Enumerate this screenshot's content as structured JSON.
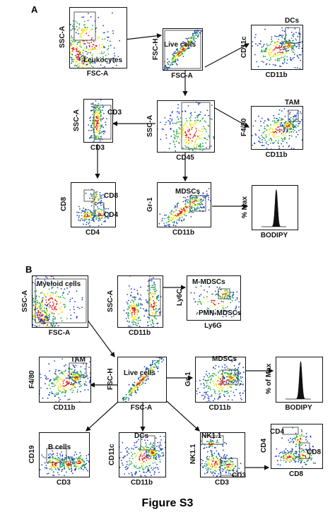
{
  "figure_title": "Figure S3",
  "panels": {
    "A": {
      "letter": "A",
      "plots": [
        {
          "id": "a1",
          "x": "FSC-A",
          "y": "SSC-A",
          "gates": [
            "Leukocytes"
          ],
          "kind": "scatter-big"
        },
        {
          "id": "a2",
          "x": "FSC-A",
          "y": "FSC-H",
          "gates": [
            "Live cells"
          ],
          "kind": "diag"
        },
        {
          "id": "a3",
          "x": "CD11b",
          "y": "CD11c",
          "gates": [
            "DCs"
          ],
          "kind": "cluster"
        },
        {
          "id": "a4",
          "x": "CD3",
          "y": "SSC-A",
          "gates": [
            "CD3"
          ],
          "kind": "vertical"
        },
        {
          "id": "a5",
          "x": "CD45",
          "y": "SSC-A",
          "gates": [],
          "kind": "blob"
        },
        {
          "id": "a6",
          "x": "CD11b",
          "y": "F4/80",
          "gates": [
            "TAM"
          ],
          "kind": "cluster"
        },
        {
          "id": "a7",
          "x": "CD4",
          "y": "CD8",
          "gates": [
            "CD8",
            "CD4"
          ],
          "kind": "quad"
        },
        {
          "id": "a8",
          "x": "CD11b",
          "y": "Gr-1",
          "gates": [
            "MDSCs"
          ],
          "kind": "diagcluster"
        },
        {
          "id": "a9",
          "x": "BODIPY",
          "y": "% Max",
          "gates": [],
          "kind": "hist"
        }
      ]
    },
    "B": {
      "letter": "B",
      "plots": [
        {
          "id": "b1",
          "x": "FSC-A",
          "y": "SSC-A",
          "gates": [
            "Myeloid cells"
          ],
          "kind": "scatter-big"
        },
        {
          "id": "b2",
          "x": "CD11b",
          "y": "SSC-A",
          "gates": [],
          "kind": "twocol"
        },
        {
          "id": "b3",
          "x": "Ly6G",
          "y": "Ly6C",
          "gates": [
            "M-MDSCs",
            "PMN-MDSCs"
          ],
          "kind": "sparse"
        },
        {
          "id": "b4",
          "x": "CD11b",
          "y": "F4/80",
          "gates": [
            "TAM"
          ],
          "kind": "cluster"
        },
        {
          "id": "b5",
          "x": "FSC-A",
          "y": "FSC-H",
          "gates": [
            "Live cells"
          ],
          "kind": "diag"
        },
        {
          "id": "b6",
          "x": "CD11b",
          "y": "Gr-1",
          "gates": [
            "MDSCs"
          ],
          "kind": "cluster"
        },
        {
          "id": "b7",
          "x": "BODIPY",
          "y": "% of Max",
          "gates": [],
          "kind": "hist"
        },
        {
          "id": "b8",
          "x": "CD3",
          "y": "CD19",
          "gates": [
            "B cells"
          ],
          "kind": "threeblob"
        },
        {
          "id": "b9",
          "x": "CD11b",
          "y": "CD11c",
          "gates": [
            "DCs"
          ],
          "kind": "cluster"
        },
        {
          "id": "b10",
          "x": "CD3",
          "y": "NK1.1",
          "gates": [
            "NK1.1",
            "CD3"
          ],
          "kind": "nk"
        },
        {
          "id": "b11",
          "x": "CD8",
          "y": "CD4",
          "gates": [
            "CD4",
            "CD8"
          ],
          "kind": "quad"
        }
      ]
    }
  },
  "colors": {
    "dense": "#e2231a",
    "mid": "#f4e61d",
    "low": "#2aa84a",
    "sparse": "#1b3fbf",
    "ink": "#111111"
  }
}
